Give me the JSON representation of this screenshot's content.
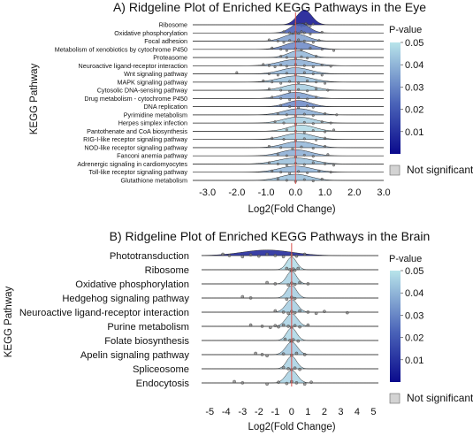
{
  "chart_data": [
    {
      "type": "ridgeline",
      "title": "A) Ridgeline Plot of Enriched KEGG Pathways in the Eye",
      "xlabel": "Log2(Fold Change)",
      "ylabel": "KEGG Pathway",
      "xlim": [
        -3.5,
        3.0
      ],
      "xticks": [
        "-3.0",
        "-2.0",
        "-1.0",
        "0.0",
        "1.0",
        "2.0",
        "3.0"
      ],
      "xtick_values": [
        -3,
        -2,
        -1,
        0,
        1,
        2,
        3
      ],
      "reference_line_x": 0,
      "pathways": [
        {
          "name": "Ribosome",
          "p_value": 0.001,
          "peak": 0.3,
          "spread": 0.25,
          "height": 1.2,
          "points": [
            0.0,
            0.1,
            0.2,
            0.25,
            0.3,
            0.35,
            0.4,
            0.5,
            0.6
          ]
        },
        {
          "name": "Oxidative phosphorylation",
          "p_value": 0.02,
          "peak": 0.15,
          "spread": 0.3,
          "height": 0.8,
          "points": [
            -0.4,
            -0.2,
            -0.1,
            0.0,
            0.1,
            0.2,
            0.3,
            0.5,
            0.9
          ]
        },
        {
          "name": "Focal adhesion",
          "p_value": 0.035,
          "peak": 0.0,
          "spread": 0.4,
          "height": 0.6,
          "points": [
            -0.9,
            -0.6,
            -0.4,
            -0.2,
            0.0,
            0.1,
            0.3,
            0.6,
            0.8
          ]
        },
        {
          "name": "Metabolism of xenobiotics by cytochrome P450",
          "p_value": 0.03,
          "peak": 0.1,
          "spread": 0.45,
          "height": 0.6,
          "points": [
            -0.8,
            -0.5,
            -0.3,
            0.0,
            0.2,
            0.5,
            0.9,
            1.3
          ]
        },
        {
          "name": "Proteasome",
          "p_value": 0.04,
          "peak": 0.1,
          "spread": 0.35,
          "height": 0.55,
          "points": [
            -0.5,
            -0.3,
            0.0,
            0.2,
            0.4,
            0.7
          ]
        },
        {
          "name": "Neuroactive ligand-receptor interaction",
          "p_value": 0.038,
          "peak": 0.0,
          "spread": 0.55,
          "height": 0.5,
          "points": [
            -1.1,
            -0.9,
            -0.7,
            -0.5,
            -0.3,
            0.0,
            0.3,
            0.6,
            0.9,
            1.2
          ]
        },
        {
          "name": "Wnt signaling pathway",
          "p_value": 0.04,
          "peak": 0.0,
          "spread": 0.5,
          "height": 0.5,
          "points": [
            -2.0,
            -0.9,
            -0.6,
            -0.3,
            0.0,
            0.3,
            0.6,
            0.9
          ]
        },
        {
          "name": "MAPK signaling pathway",
          "p_value": 0.042,
          "peak": 0.0,
          "spread": 0.55,
          "height": 0.5,
          "points": [
            -1.1,
            -0.8,
            -0.5,
            -0.2,
            0.1,
            0.4,
            0.7,
            1.0
          ]
        },
        {
          "name": "Cytosolic DNA-sensing pathway",
          "p_value": 0.045,
          "peak": 0.1,
          "spread": 0.5,
          "height": 0.5,
          "points": [
            -0.9,
            -0.5,
            -0.2,
            0.1,
            0.4,
            0.7,
            1.1
          ]
        },
        {
          "name": "Drug metabolism - cytochrome P450",
          "p_value": 0.035,
          "peak": 0.0,
          "spread": 0.45,
          "height": 0.5,
          "points": [
            -0.8,
            -0.5,
            -0.2,
            0.1,
            0.4,
            0.7
          ]
        },
        {
          "name": "DNA replication",
          "p_value": 0.03,
          "peak": 0.1,
          "spread": 0.4,
          "height": 0.5,
          "points": [
            -0.5,
            -0.2,
            0.1,
            0.4,
            0.6
          ]
        },
        {
          "name": "Pyrimidine metabolism",
          "p_value": 0.038,
          "peak": 0.1,
          "spread": 0.5,
          "height": 0.5,
          "points": [
            -0.6,
            -0.3,
            0.0,
            0.3,
            0.6,
            1.0,
            1.4
          ]
        },
        {
          "name": "Herpes simplex infection",
          "p_value": 0.045,
          "peak": 0.1,
          "spread": 0.5,
          "height": 0.5,
          "points": [
            -0.7,
            -0.4,
            0.0,
            0.3,
            0.6,
            0.9,
            1.2
          ]
        },
        {
          "name": "Pantothenate and CoA biosynthesis",
          "p_value": 0.048,
          "peak": 0.2,
          "spread": 0.45,
          "height": 0.5,
          "points": [
            -0.3,
            0.0,
            0.3,
            0.6,
            1.0,
            1.3
          ]
        },
        {
          "name": "RIG-I-like receptor signaling pathway",
          "p_value": 0.044,
          "peak": 0.1,
          "spread": 0.5,
          "height": 0.5,
          "points": [
            -0.8,
            -0.4,
            0.0,
            0.3,
            0.7,
            1.0
          ]
        },
        {
          "name": "NOD-like receptor signaling pathway",
          "p_value": 0.04,
          "peak": 0.1,
          "spread": 0.5,
          "height": 0.5,
          "points": [
            -0.9,
            -0.5,
            -0.1,
            0.2,
            0.6,
            1.0
          ]
        },
        {
          "name": "Fanconi anemia pathway",
          "p_value": 0.038,
          "peak": 0.0,
          "spread": 0.5,
          "height": 0.5,
          "points": [
            -0.6,
            -0.3,
            0.0,
            0.3,
            0.6,
            1.1
          ]
        },
        {
          "name": "Adrenergic signaling in cardiomyocytes",
          "p_value": 0.042,
          "peak": 0.0,
          "spread": 0.6,
          "height": 0.5,
          "points": [
            -0.9,
            -0.6,
            -0.3,
            0.0,
            0.3,
            0.6,
            1.0,
            1.3
          ]
        },
        {
          "name": "Toll-like receptor signaling pathway",
          "p_value": 0.04,
          "peak": 0.0,
          "spread": 0.55,
          "height": 0.5,
          "points": [
            -0.8,
            -0.5,
            -0.2,
            0.1,
            0.4,
            0.8,
            1.2
          ]
        },
        {
          "name": "Glutathione metabolism",
          "p_value": 0.042,
          "peak": 0.0,
          "spread": 0.5,
          "height": 0.5,
          "points": [
            -0.6,
            -0.3,
            0.0,
            0.3,
            0.6,
            0.9
          ]
        }
      ],
      "colorbar": {
        "title": "P-value",
        "min": 0.0,
        "max": 0.05,
        "ticks": [
          "0.01",
          "0.02",
          "0.03",
          "0.04",
          "0.05"
        ],
        "tick_values": [
          0.01,
          0.02,
          0.03,
          0.04,
          0.05
        ],
        "low_color": "#0a0a8c",
        "high_color": "#b8e4ea"
      },
      "not_significant_label": "Not significant",
      "not_significant_color": "#d3d3d3"
    },
    {
      "type": "ridgeline",
      "title": "B) Ridgeline Plot of Enriched KEGG Pathways in the Brain",
      "xlabel": "Log2(Fold Change)",
      "ylabel": "KEGG Pathway",
      "xlim": [
        -5.5,
        5.3
      ],
      "xticks": [
        "-5",
        "-4",
        "-3",
        "-2",
        "-1",
        "0",
        "1",
        "2",
        "3",
        "4",
        "5"
      ],
      "xtick_values": [
        -5,
        -4,
        -3,
        -2,
        -1,
        0,
        1,
        2,
        3,
        4,
        5
      ],
      "reference_line_x": 0,
      "pathways": [
        {
          "name": "Phototransduction",
          "p_value": 0.005,
          "peak": -1.5,
          "spread": 1.5,
          "height": 0.35,
          "points": [
            -4.2,
            -3.8,
            -3.0,
            -2.5,
            -2.0,
            -1.5,
            -1.0,
            -0.5,
            0.0,
            0.3,
            0.8
          ]
        },
        {
          "name": "Ribosome",
          "p_value": 0.048,
          "peak": 0.0,
          "spread": 0.3,
          "height": 0.8,
          "points": [
            -0.3,
            -0.1,
            0.0,
            0.1,
            0.2,
            0.4
          ]
        },
        {
          "name": "Oxidative phosphorylation",
          "p_value": 0.046,
          "peak": 0.0,
          "spread": 0.3,
          "height": 0.8,
          "points": [
            -1.5,
            -1.0,
            -0.2,
            0.0,
            0.2,
            0.5,
            1.0
          ]
        },
        {
          "name": "Hedgehog signaling pathway",
          "p_value": 0.045,
          "peak": 0.0,
          "spread": 0.3,
          "height": 0.8,
          "points": [
            -3.0,
            -2.5,
            -0.3,
            0.0,
            0.2
          ]
        },
        {
          "name": "Neuroactive ligand-receptor interaction",
          "p_value": 0.045,
          "peak": 0.0,
          "spread": 0.35,
          "height": 0.8,
          "points": [
            -1.0,
            -0.5,
            -0.2,
            0.0,
            0.2,
            0.5,
            1.0,
            1.5,
            2.0,
            3.4
          ]
        },
        {
          "name": "Purine metabolism",
          "p_value": 0.046,
          "peak": 0.0,
          "spread": 0.35,
          "height": 0.8,
          "points": [
            -2.5,
            -1.8,
            -1.3,
            -1.0,
            -0.8,
            -0.5,
            -0.2,
            0.0,
            0.2,
            0.5,
            1.0
          ]
        },
        {
          "name": "Folate biosynthesis",
          "p_value": 0.047,
          "peak": 0.0,
          "spread": 0.3,
          "height": 0.8,
          "points": [
            -0.4,
            -0.1,
            0.0,
            0.1,
            0.4
          ]
        },
        {
          "name": "Apelin signaling pathway",
          "p_value": 0.044,
          "peak": 0.0,
          "spread": 0.35,
          "height": 0.8,
          "points": [
            -2.2,
            -1.8,
            -1.5,
            -0.5,
            0.0,
            0.3,
            0.8
          ]
        },
        {
          "name": "Spliceosome",
          "p_value": 0.046,
          "peak": 0.0,
          "spread": 0.3,
          "height": 0.8,
          "points": [
            -0.5,
            -0.2,
            0.0,
            0.2,
            0.5
          ]
        },
        {
          "name": "Endocytosis",
          "p_value": 0.046,
          "peak": 0.0,
          "spread": 0.35,
          "height": 0.8,
          "points": [
            -3.5,
            -3.0,
            -1.5,
            -0.8,
            -0.3,
            0.0,
            0.3,
            0.8,
            1.2
          ]
        }
      ],
      "colorbar": {
        "title": "P-value",
        "min": 0.0,
        "max": 0.05,
        "ticks": [
          "0.01",
          "0.02",
          "0.03",
          "0.04",
          "0.05"
        ],
        "tick_values": [
          0.01,
          0.02,
          0.03,
          0.04,
          0.05
        ],
        "low_color": "#0a0a8c",
        "high_color": "#b8e4ea"
      },
      "not_significant_label": "Not significant",
      "not_significant_color": "#d3d3d3"
    }
  ]
}
